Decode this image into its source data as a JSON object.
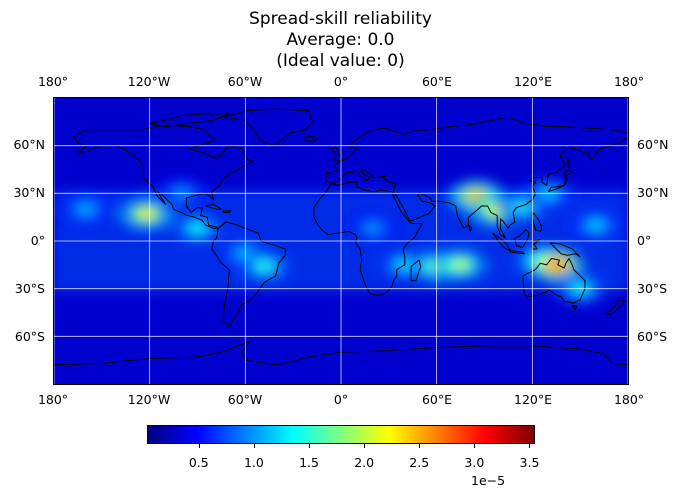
{
  "title": {
    "line1": "Spread-skill reliability",
    "line2": "Average: 0.0",
    "line3": "(Ideal value: 0)"
  },
  "map": {
    "projection": "plate-carree",
    "lon_range": [
      -180,
      180
    ],
    "lat_range": [
      -90,
      90
    ],
    "gridlines": true,
    "lon_ticks": [
      {
        "value": -180,
        "label": "180°"
      },
      {
        "value": -120,
        "label": "120°W"
      },
      {
        "value": -60,
        "label": "60°W"
      },
      {
        "value": 0,
        "label": "0°"
      },
      {
        "value": 60,
        "label": "60°E"
      },
      {
        "value": 120,
        "label": "120°E"
      },
      {
        "value": 180,
        "label": "180°"
      }
    ],
    "lat_ticks": [
      {
        "value": 60,
        "label": "60°N"
      },
      {
        "value": 30,
        "label": "30°N"
      },
      {
        "value": 0,
        "label": "0°"
      },
      {
        "value": -30,
        "label": "30°S"
      },
      {
        "value": -60,
        "label": "60°S"
      }
    ],
    "colormap": "jet",
    "background_value": 3e-06,
    "hotspots": [
      {
        "lon": -122,
        "lat": 17,
        "value": 2.3e-05
      },
      {
        "lon": -90,
        "lat": 8,
        "value": 1.4e-05
      },
      {
        "lon": -60,
        "lat": -8,
        "value": 1.2e-05
      },
      {
        "lon": -48,
        "lat": -16,
        "value": 1.5e-05
      },
      {
        "lon": -160,
        "lat": 20,
        "value": 1.1e-05
      },
      {
        "lon": -100,
        "lat": 30,
        "value": 1e-05
      },
      {
        "lon": 20,
        "lat": 8,
        "value": 1e-05
      },
      {
        "lon": 40,
        "lat": -15,
        "value": 1.3e-05
      },
      {
        "lon": 60,
        "lat": -16,
        "value": 1.9e-05
      },
      {
        "lon": 75,
        "lat": -15,
        "value": 2e-05
      },
      {
        "lon": 85,
        "lat": 28,
        "value": 2.6e-05
      },
      {
        "lon": 97,
        "lat": 19,
        "value": 2.2e-05
      },
      {
        "lon": 115,
        "lat": 22,
        "value": 1.5e-05
      },
      {
        "lon": 130,
        "lat": 30,
        "value": 1.2e-05
      },
      {
        "lon": 125,
        "lat": -12,
        "value": 1.6e-05
      },
      {
        "lon": 135,
        "lat": -15,
        "value": 3e-05
      },
      {
        "lon": 150,
        "lat": -30,
        "value": 1.4e-05
      },
      {
        "lon": 160,
        "lat": 10,
        "value": 1.2e-05
      }
    ]
  },
  "colorbar": {
    "min": 3e-07,
    "max": 3.55e-05,
    "ticks": [
      {
        "value": 0.5,
        "label": "0.5"
      },
      {
        "value": 1.0,
        "label": "1.0"
      },
      {
        "value": 1.5,
        "label": "1.5"
      },
      {
        "value": 2.0,
        "label": "2.0"
      },
      {
        "value": 2.5,
        "label": "2.5"
      },
      {
        "value": 3.0,
        "label": "3.0"
      },
      {
        "value": 3.5,
        "label": "3.5"
      }
    ],
    "exponent_label": "1e−5"
  },
  "colors": {
    "coastline": "#000000",
    "gridline": "#ffffff"
  }
}
